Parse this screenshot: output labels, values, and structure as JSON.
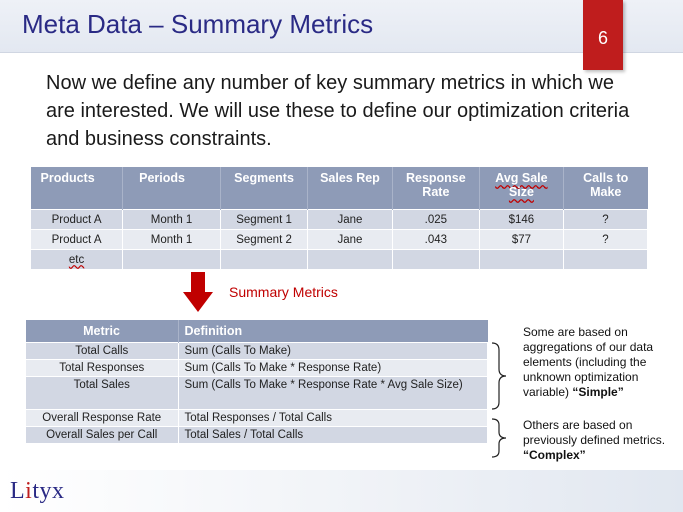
{
  "title": "Meta Data – Summary Metrics",
  "page_number": "6",
  "intro": "Now we define any number of key summary metrics in which we are interested.  We will use these to define our optimization criteria and business constraints.",
  "table1": {
    "headers": [
      "Products",
      "Periods",
      "Segments",
      "Sales Rep",
      "Response Rate",
      "Avg Sale Size",
      "Calls to Make"
    ],
    "rows": [
      [
        "Product A",
        "Month 1",
        "Segment 1",
        "Jane",
        ".025",
        "$146",
        "?"
      ],
      [
        "Product A",
        "Month 1",
        "Segment 2",
        "Jane",
        ".043",
        "$77",
        "?"
      ],
      [
        "etc",
        "",
        "",
        "",
        "",
        "",
        ""
      ]
    ]
  },
  "arrow_label": "Summary Metrics",
  "table2": {
    "headers": [
      "Metric",
      "Definition"
    ],
    "rows": [
      [
        "Total Calls",
        "Sum (Calls To Make)"
      ],
      [
        "Total Responses",
        "Sum (Calls To Make * Response Rate)"
      ],
      [
        "Total Sales",
        "Sum (Calls To Make * Response Rate * Avg Sale Size)"
      ],
      [
        "Overall Response Rate",
        "Total Responses / Total Calls"
      ],
      [
        "Overall Sales per Call",
        "Total Sales / Total Calls"
      ]
    ]
  },
  "note_simple": {
    "text": "Some are based on aggregations of our data elements (including the unknown optimization variable)",
    "emphasis": "“Simple”"
  },
  "note_complex": {
    "text": "Others are based on previously defined metrics.",
    "emphasis": "“Complex”"
  },
  "logo": {
    "prefix": "L",
    "accent": "i",
    "suffix": "tyx"
  },
  "colors": {
    "title": "#2a2a85",
    "badge": "#bf1d1d",
    "table_header": "#8e9bb7",
    "row_dark": "#d2d7e3",
    "row_light": "#e8ebf1",
    "arrow": "#c00000"
  }
}
